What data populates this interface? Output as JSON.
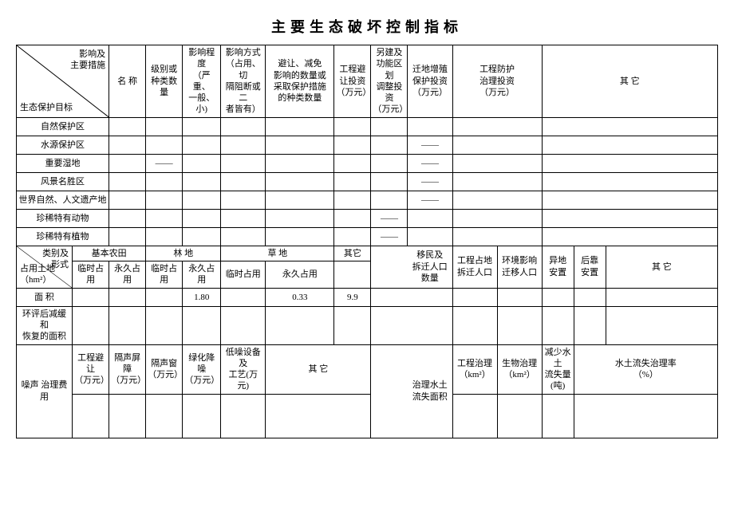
{
  "title": "主要生态破坏控制指标",
  "section1": {
    "diag_top": "影响及\n主要措施",
    "diag_bottom": "生态保护目标",
    "headers": {
      "col1": "名  称",
      "col2": "级别或\n种类数量",
      "col3": "影响程度\n（严重、\n一般、小)",
      "col4": "影响方式\n（占用、切\n隔阻断或二\n者皆有）",
      "col5": "避让、减免\n影响的数量或\n采取保护措施\n的种类数量",
      "col6": "工程避\n让投资\n（万元）",
      "col7": "另建及\n功能区划\n调整投资\n（万元）",
      "col8": "迁地增殖\n保护投资\n（万元）",
      "col9": "工程防护\n治理投资\n（万元）",
      "col10": "其     它"
    },
    "rows": {
      "r1": "自然保护区",
      "r2": "水源保护区",
      "r3": "重要湿地",
      "r4": "风景名胜区",
      "r5": "世界自然、人文遗产地",
      "r6": "珍稀特有动物",
      "r7": "珍稀特有植物"
    },
    "dash": "——"
  },
  "section2": {
    "diag_top": "类别及\n形式",
    "diag_bottom": "占用土地\n（hm²）",
    "headers": {
      "c1": "基本农田",
      "c2": "林    地",
      "c3": "草    地",
      "c4": "其它",
      "sub_temp": "临时占用",
      "sub_perm": "永久占用",
      "c5": "移民及\n拆迁人口\n数量",
      "c6": "工程占地\n拆迁人口",
      "c7": "环境影响\n迁移人口",
      "c8": "异地\n安置",
      "c9": "后靠\n安置",
      "c10": "其   它"
    },
    "row_area": "面    积",
    "row_recover": "环评后减缓和\n恢复的面积",
    "values": {
      "v1": "1.80",
      "v2": "0.33",
      "v3": "9.9"
    }
  },
  "section3": {
    "row_label": "噪声  治理费\n用",
    "c1": "工程避让\n（万元）",
    "c2": "隔声屏障\n（万元）",
    "c3": "隔声窗\n（万元）",
    "c4": "绿化降噪\n（万元）",
    "c5": "低噪设备及\n工艺(万元)",
    "c6": "其   它",
    "c7": "治理水土\n流失面积",
    "c8": "工程治理\n（km²）",
    "c9": "生物治理\n（km²）",
    "c10": "减少水土\n流失量(吨)",
    "c11": "水土流失治理率\n（%）"
  }
}
